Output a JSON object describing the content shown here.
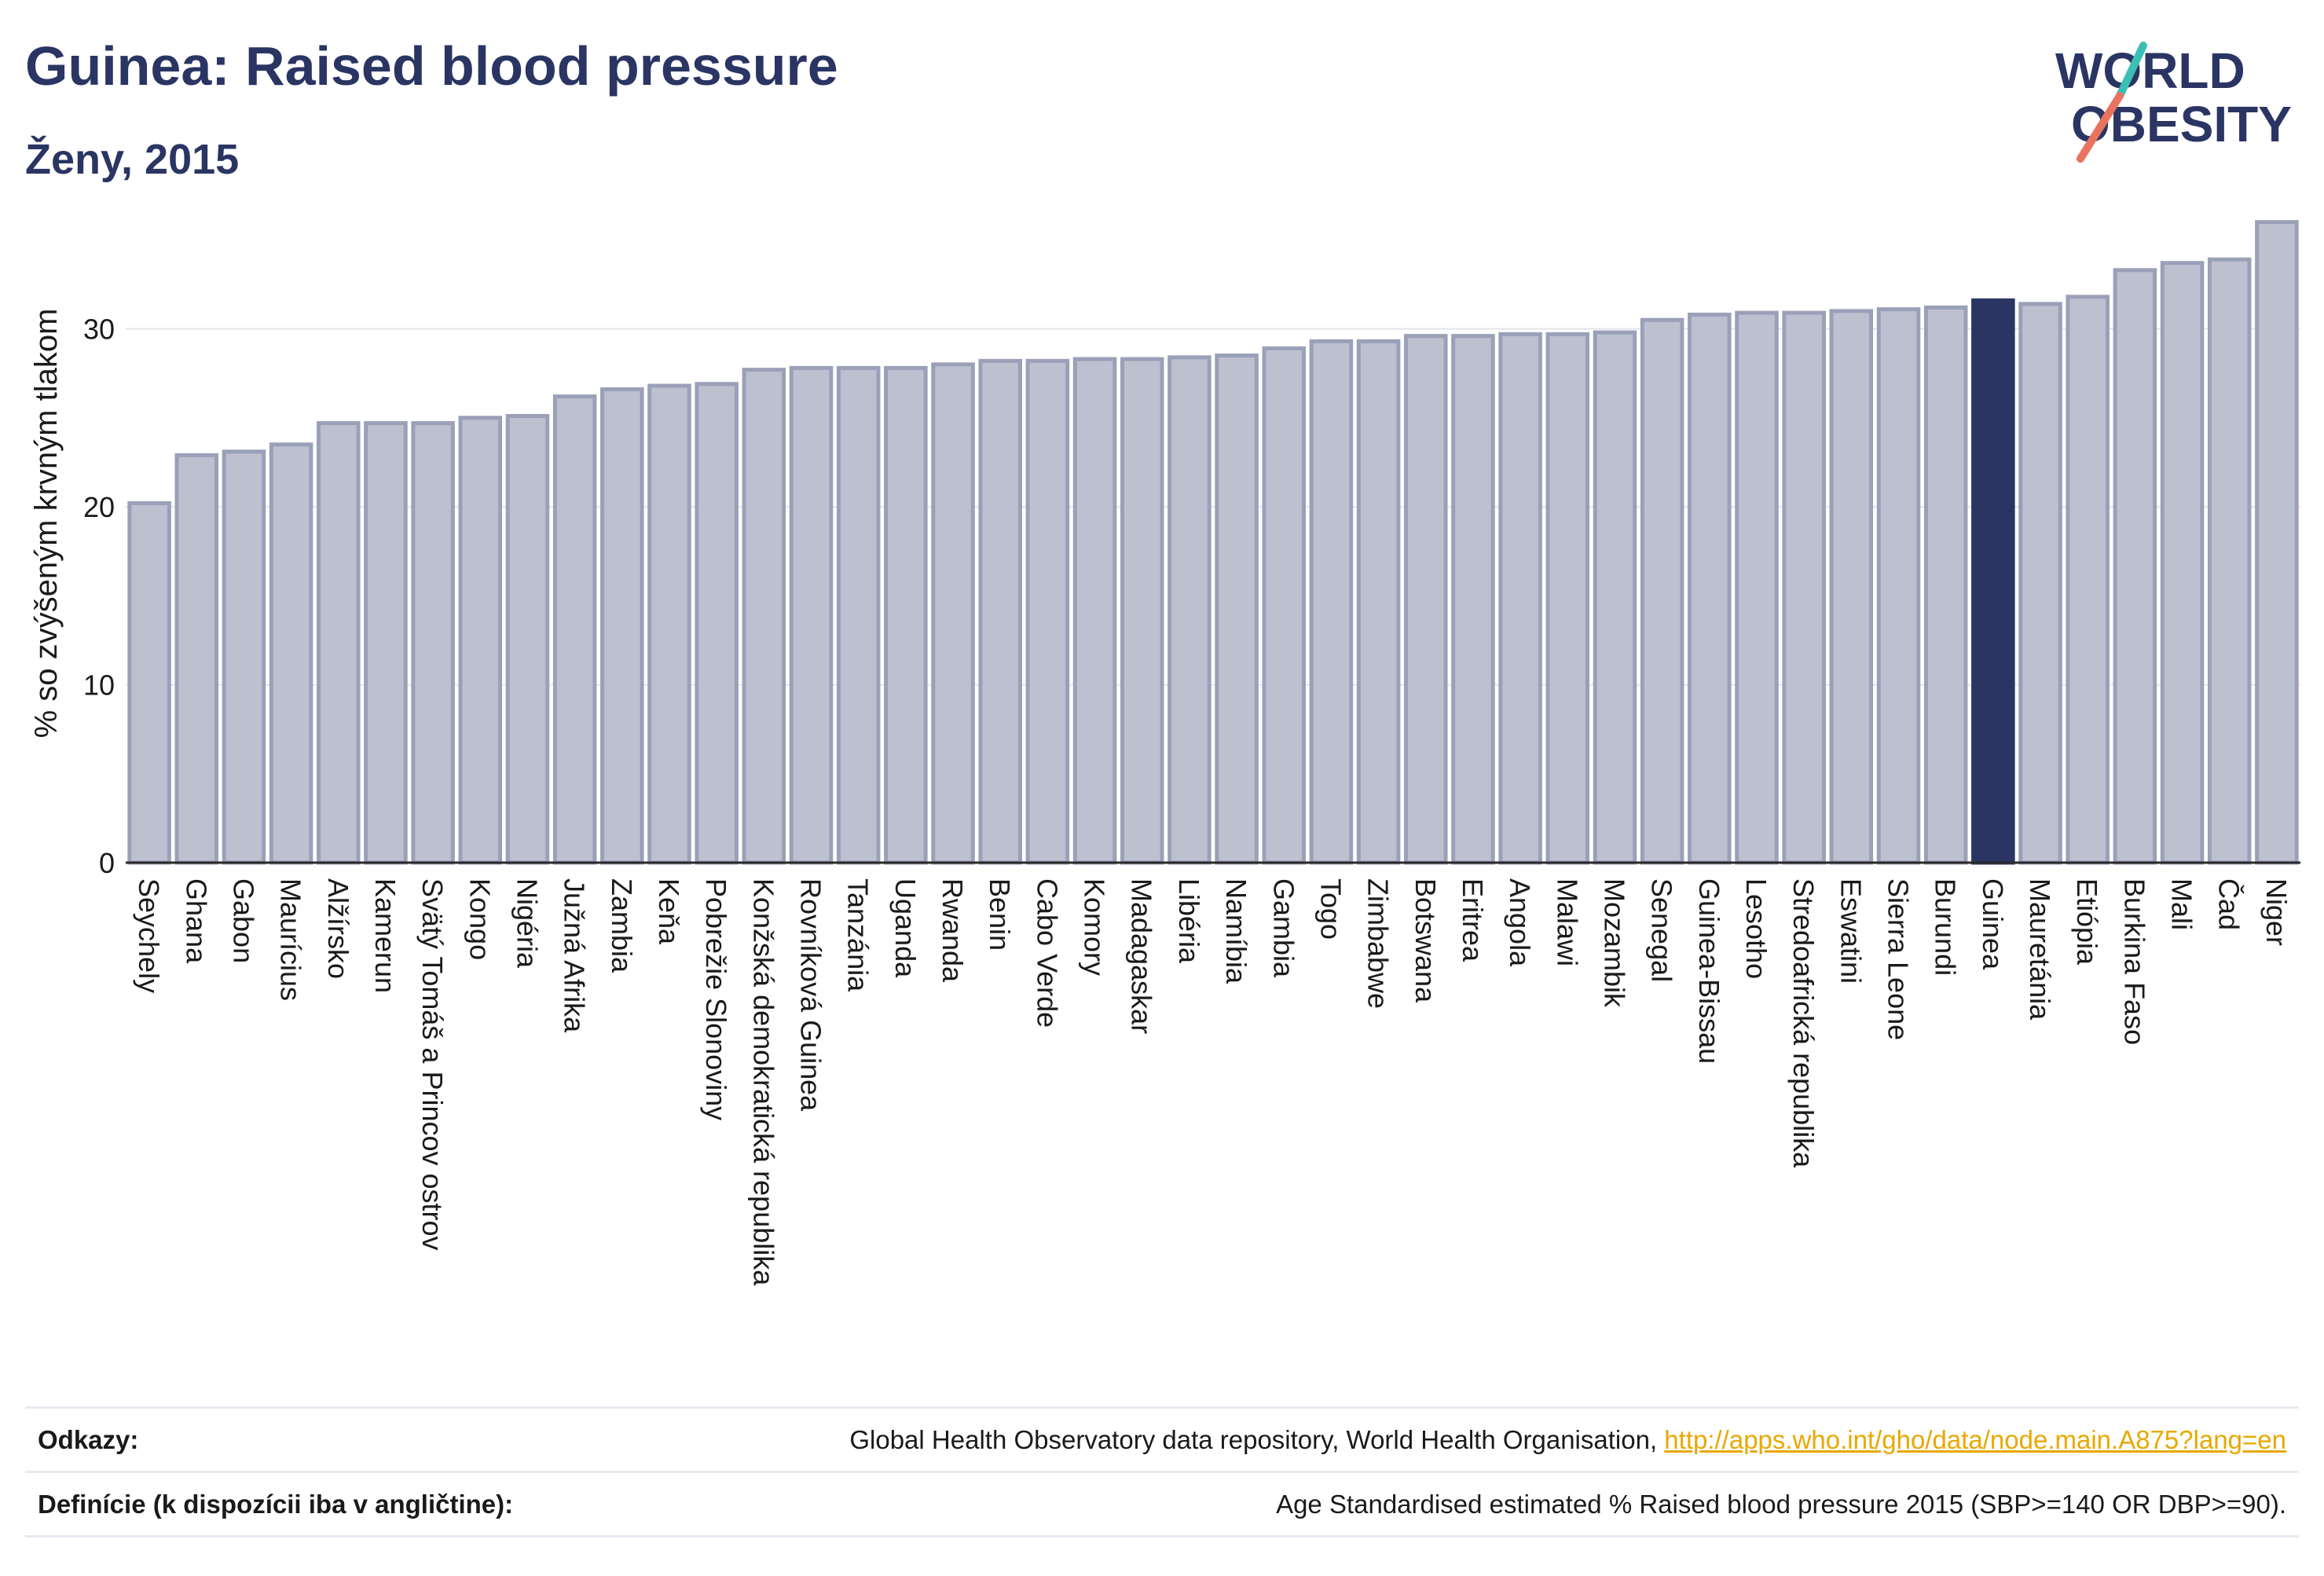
{
  "header": {
    "title": "Guinea: Raised blood pressure",
    "subtitle": "Ženy, 2015"
  },
  "logo": {
    "line1": "WORLD",
    "line2": "OBESITY"
  },
  "footer": {
    "refs_label": "Odkazy:",
    "refs_text": "Global Health Observatory data repository, World Health Organisation,",
    "refs_link": "http://apps.who.int/gho/data/node.main.A875?lang=en",
    "defs_label": "Definície (k dispozícii iba v angličtine):",
    "defs_text": "Age Standardised estimated % Raised blood pressure 2015 (SBP>=140 OR DBP>=90)."
  },
  "colors": {
    "bar": "#bcc0cf",
    "bar_stroke": "#9aa0b8",
    "highlight": "#2b3563",
    "accent_teal": "#3bbfb5",
    "accent_coral": "#e8735f"
  },
  "chart_data": {
    "type": "bar",
    "ylabel": "% so zvýšeným krvným tlakom",
    "ylim": [
      0,
      37
    ],
    "yticks": [
      0,
      10,
      20,
      30
    ],
    "grid": true,
    "highlight": "Guinea",
    "categories": [
      "Seychely",
      "Ghana",
      "Gabon",
      "Maurícius",
      "Alžírsko",
      "Kamerun",
      "Svätý Tomáš a Princov ostrov",
      "Kongo",
      "Nigéria",
      "Južná Afrika",
      "Zambia",
      "Keňa",
      "Pobrežie Slonoviny",
      "Konžská demokratická republika",
      "Rovníková Guinea",
      "Tanzánia",
      "Uganda",
      "Rwanda",
      "Benin",
      "Cabo Verde",
      "Komory",
      "Madagaskar",
      "Libéria",
      "Namíbia",
      "Gambia",
      "Togo",
      "Zimbabwe",
      "Botswana",
      "Eritrea",
      "Angola",
      "Malawi",
      "Mozambik",
      "Senegal",
      "Guinea-Bissau",
      "Lesotho",
      "Stredoafrická republika",
      "Eswatini",
      "Sierra Leone",
      "Burundi",
      "Guinea",
      "Mauretánia",
      "Etiópia",
      "Burkina Faso",
      "Mali",
      "Čad",
      "Niger"
    ],
    "values": [
      20.2,
      22.9,
      23.1,
      23.5,
      24.7,
      24.7,
      24.7,
      25.0,
      25.1,
      26.2,
      26.6,
      26.8,
      26.9,
      27.7,
      27.8,
      27.8,
      27.8,
      28.0,
      28.2,
      28.2,
      28.3,
      28.3,
      28.4,
      28.5,
      28.9,
      29.3,
      29.3,
      29.6,
      29.6,
      29.7,
      29.7,
      29.8,
      30.5,
      30.8,
      30.9,
      30.9,
      31.0,
      31.1,
      31.2,
      31.6,
      31.4,
      31.8,
      33.3,
      33.7,
      33.9,
      36.0
    ]
  }
}
